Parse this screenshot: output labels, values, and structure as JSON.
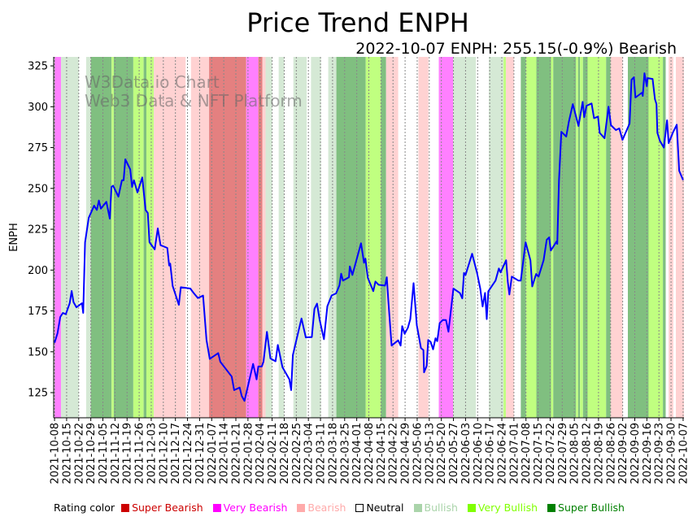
{
  "chart_data": {
    "type": "line",
    "title": "Price Trend ENPH",
    "subtitle": "2022-10-07 ENPH: 255.15(-0.9%) Bearish",
    "ylabel": "ENPH",
    "xlabel": "",
    "watermark": [
      "W3Data.io Chart",
      "Web3 Data & NFT Platform"
    ],
    "start_date": "2021-10-08",
    "xlim_days": [
      -0.5,
      364.5
    ],
    "ylim": [
      109.6,
      330.5
    ],
    "yticks": [
      125,
      150,
      175,
      200,
      225,
      250,
      275,
      300,
      325
    ],
    "xtick_labels": [
      "2021-10-08",
      "2021-10-15",
      "2021-10-22",
      "2021-10-29",
      "2021-11-05",
      "2021-11-12",
      "2021-11-19",
      "2021-11-26",
      "2021-12-03",
      "2021-12-10",
      "2021-12-17",
      "2021-12-24",
      "2021-12-31",
      "2022-01-07",
      "2022-01-14",
      "2022-01-21",
      "2022-01-28",
      "2022-02-04",
      "2022-02-11",
      "2022-02-18",
      "2022-02-25",
      "2022-03-04",
      "2022-03-11",
      "2022-03-18",
      "2022-03-25",
      "2022-04-01",
      "2022-04-08",
      "2022-04-15",
      "2022-04-22",
      "2022-04-29",
      "2022-05-06",
      "2022-05-13",
      "2022-05-20",
      "2022-05-27",
      "2022-06-03",
      "2022-06-10",
      "2022-06-17",
      "2022-06-24",
      "2022-07-01",
      "2022-07-08",
      "2022-07-15",
      "2022-07-22",
      "2022-07-29",
      "2022-08-05",
      "2022-08-12",
      "2022-08-19",
      "2022-08-26",
      "2022-09-02",
      "2022-09-09",
      "2022-09-16",
      "2022-09-23",
      "2022-09-30",
      "2022-10-07"
    ],
    "xtick_step_days": 7,
    "grid": "vertical dotted",
    "series": [
      {
        "name": "ENPH",
        "color": "#0000ff",
        "points_day_price": [
          [
            0,
            155.5
          ],
          [
            1.7,
            161.3
          ],
          [
            3.3,
            171.3
          ],
          [
            4.8,
            173.8
          ],
          [
            6.5,
            173
          ],
          [
            8.8,
            179.7
          ],
          [
            9.9,
            187.2
          ],
          [
            11,
            180.4
          ],
          [
            12.7,
            177.2
          ],
          [
            15.9,
            179.7
          ],
          [
            16.6,
            173.8
          ],
          [
            17.7,
            217
          ],
          [
            19.8,
            232
          ],
          [
            22.9,
            239.4
          ],
          [
            24.5,
            236.8
          ],
          [
            25.7,
            242.6
          ],
          [
            26.8,
            237.6
          ],
          [
            30,
            241.8
          ],
          [
            32,
            231.5
          ],
          [
            33,
            250.9
          ],
          [
            33.9,
            251.7
          ],
          [
            37,
            245
          ],
          [
            39,
            255
          ],
          [
            40,
            255
          ],
          [
            41,
            267.8
          ],
          [
            43.8,
            261.7
          ],
          [
            44.9,
            250.9
          ],
          [
            46,
            255
          ],
          [
            48,
            247.5
          ],
          [
            50.8,
            256.7
          ],
          [
            52.7,
            236.8
          ],
          [
            54,
            235
          ],
          [
            55,
            217
          ],
          [
            58,
            212.7
          ],
          [
            59.8,
            225.5
          ],
          [
            61.4,
            215.2
          ],
          [
            65.3,
            213.6
          ],
          [
            66.4,
            202.8
          ],
          [
            67,
            204
          ],
          [
            68.4,
            190.3
          ],
          [
            72,
            178.7
          ],
          [
            73.1,
            189.5
          ],
          [
            78.6,
            188.7
          ],
          [
            80.5,
            186
          ],
          [
            83,
            182.9
          ],
          [
            86,
            184.4
          ],
          [
            88,
            157.2
          ],
          [
            89.9,
            145.6
          ],
          [
            94.8,
            149.2
          ],
          [
            96,
            143.9
          ],
          [
            102.6,
            134.8
          ],
          [
            104,
            126.5
          ],
          [
            107.2,
            128.1
          ],
          [
            108.4,
            123
          ],
          [
            110,
            119.9
          ],
          [
            115,
            142.6
          ],
          [
            117,
            133.1
          ],
          [
            118,
            141
          ],
          [
            120,
            141
          ],
          [
            121,
            144
          ],
          [
            123,
            162.2
          ],
          [
            125,
            145.9
          ],
          [
            128,
            144.2
          ],
          [
            129.3,
            154.2
          ],
          [
            132,
            140.6
          ],
          [
            136,
            133.1
          ],
          [
            137,
            126.5
          ],
          [
            138,
            148
          ],
          [
            143,
            170.4
          ],
          [
            145.5,
            158.8
          ],
          [
            149,
            159
          ],
          [
            150.5,
            176.2
          ],
          [
            152,
            179.5
          ],
          [
            153.5,
            169.6
          ],
          [
            156,
            157.7
          ],
          [
            158,
            177.9
          ],
          [
            160.5,
            184.5
          ],
          [
            163,
            185.7
          ],
          [
            165,
            190.7
          ],
          [
            166,
            197.8
          ],
          [
            167,
            193.6
          ],
          [
            170.5,
            195.6
          ],
          [
            171,
            202.3
          ],
          [
            172.5,
            197
          ],
          [
            177.5,
            216.4
          ],
          [
            179.2,
            204.5
          ],
          [
            180,
            207
          ],
          [
            181.4,
            195.3
          ],
          [
            184.6,
            187.1
          ],
          [
            185.8,
            193
          ],
          [
            187.7,
            191
          ],
          [
            191.4,
            190.5
          ],
          [
            192.4,
            195.6
          ],
          [
            193.3,
            181
          ],
          [
            195.2,
            153.8
          ],
          [
            199,
            157
          ],
          [
            200.4,
            153.8
          ],
          [
            201.3,
            165.7
          ],
          [
            202.7,
            161
          ],
          [
            204.6,
            164.7
          ],
          [
            206,
            170
          ],
          [
            207.9,
            192
          ],
          [
            209.8,
            166.2
          ],
          [
            212.2,
            152.3
          ],
          [
            213.6,
            151
          ],
          [
            214,
            137.4
          ],
          [
            215.5,
            141.3
          ],
          [
            216.4,
            157.2
          ],
          [
            217.8,
            156
          ],
          [
            219.2,
            151.5
          ],
          [
            220.6,
            158.3
          ],
          [
            221.6,
            156.5
          ],
          [
            223,
            167.5
          ],
          [
            224.9,
            169.5
          ],
          [
            226.7,
            169.4
          ],
          [
            228.1,
            162.3
          ],
          [
            231,
            188.7
          ],
          [
            234.7,
            186
          ],
          [
            236.1,
            182.7
          ],
          [
            237.1,
            198.3
          ],
          [
            238,
            197
          ],
          [
            241.8,
            210
          ],
          [
            244.6,
            198.6
          ],
          [
            246.5,
            188.7
          ],
          [
            247.9,
            177.7
          ],
          [
            249.3,
            186
          ],
          [
            250.3,
            170
          ],
          [
            251.2,
            187
          ],
          [
            255.4,
            193.6
          ],
          [
            257.3,
            201
          ],
          [
            258.3,
            198.6
          ],
          [
            261.5,
            206
          ],
          [
            262.5,
            192.7
          ],
          [
            263.4,
            185
          ],
          [
            264.8,
            196
          ],
          [
            268.6,
            193.6
          ],
          [
            270,
            193.6
          ],
          [
            272.8,
            217
          ],
          [
            275.6,
            206
          ],
          [
            276.6,
            190
          ],
          [
            278.9,
            197.6
          ],
          [
            280.3,
            196
          ],
          [
            283.2,
            206
          ],
          [
            285,
            218.5
          ],
          [
            286.4,
            220
          ],
          [
            287.4,
            212
          ],
          [
            290.7,
            217.5
          ],
          [
            291.1,
            216
          ],
          [
            292.1,
            254.8
          ],
          [
            293.5,
            284.7
          ],
          [
            296.3,
            281.7
          ],
          [
            297.8,
            290.7
          ],
          [
            300.1,
            301.6
          ],
          [
            303.4,
            288.2
          ],
          [
            305.8,
            303
          ],
          [
            306.7,
            293.6
          ],
          [
            308.1,
            300.6
          ],
          [
            311,
            302
          ],
          [
            312.4,
            293
          ],
          [
            314.7,
            294
          ],
          [
            315.7,
            284
          ],
          [
            318.5,
            280.7
          ],
          [
            320.8,
            300
          ],
          [
            322.2,
            288.7
          ],
          [
            325.1,
            285.7
          ],
          [
            327,
            286.7
          ],
          [
            328.9,
            279.7
          ],
          [
            333,
            289.7
          ],
          [
            334.1,
            316.5
          ],
          [
            335.5,
            318
          ],
          [
            336.4,
            305.6
          ],
          [
            340.2,
            308.6
          ],
          [
            340.6,
            306.6
          ],
          [
            341.6,
            320.5
          ],
          [
            343,
            312.6
          ],
          [
            343.4,
            317.5
          ],
          [
            346.3,
            317
          ],
          [
            347.7,
            304.6
          ],
          [
            348.6,
            301.6
          ],
          [
            349.1,
            284
          ],
          [
            350.5,
            279.2
          ],
          [
            352.8,
            275
          ],
          [
            354.7,
            291.7
          ],
          [
            355.6,
            277.7
          ],
          [
            358,
            284
          ],
          [
            360.3,
            289
          ],
          [
            361.7,
            260.8
          ],
          [
            364,
            255.15
          ]
        ]
      }
    ],
    "rating_bands_day": [
      [
        0,
        3.8,
        "very_bearish"
      ],
      [
        3.8,
        14,
        "bullish"
      ],
      [
        18.3,
        21,
        "bullish"
      ],
      [
        21,
        33,
        "super_bullish"
      ],
      [
        33,
        34.3,
        "very_bullish"
      ],
      [
        34.3,
        45.6,
        "super_bullish"
      ],
      [
        45.6,
        51.6,
        "very_bullish"
      ],
      [
        51.6,
        53.2,
        "super_bullish"
      ],
      [
        53.2,
        57.5,
        "very_bullish"
      ],
      [
        57.5,
        75.9,
        "bearish"
      ],
      [
        79,
        89.5,
        "bearish"
      ],
      [
        89.5,
        111,
        "super_bearish"
      ],
      [
        111,
        118,
        "very_bearish"
      ],
      [
        118,
        120.4,
        "super_bearish"
      ],
      [
        120.4,
        122.2,
        "bearish"
      ],
      [
        122.2,
        126,
        "bullish"
      ],
      [
        129.8,
        133,
        "bullish"
      ],
      [
        138.3,
        146,
        "bullish"
      ],
      [
        148.5,
        154.3,
        "bullish"
      ],
      [
        158.5,
        163.2,
        "bullish"
      ],
      [
        163.2,
        180.2,
        "super_bullish"
      ],
      [
        180.2,
        189,
        "very_bullish"
      ],
      [
        189,
        192,
        "super_bullish"
      ],
      [
        192,
        199,
        "bearish"
      ],
      [
        210.7,
        216.5,
        "bearish"
      ],
      [
        222.5,
        230.8,
        "very_bearish"
      ],
      [
        230.8,
        244,
        "bullish"
      ],
      [
        251.5,
        260,
        "bullish"
      ],
      [
        260,
        261.4,
        "very_bullish"
      ],
      [
        261.4,
        266,
        "bearish"
      ],
      [
        270,
        273,
        "super_bullish"
      ],
      [
        273,
        279,
        "very_bullish"
      ],
      [
        279,
        287.5,
        "super_bullish"
      ],
      [
        287.5,
        288.8,
        "very_bullish"
      ],
      [
        288.8,
        302,
        "super_bullish"
      ],
      [
        302,
        303.2,
        "very_bullish"
      ],
      [
        303.2,
        304.3,
        "super_bullish"
      ],
      [
        304.3,
        306,
        "very_bullish"
      ],
      [
        306,
        308.7,
        "super_bullish"
      ],
      [
        308.7,
        319.4,
        "very_bullish"
      ],
      [
        319.4,
        322,
        "super_bullish"
      ],
      [
        322,
        329,
        "bearish"
      ],
      [
        332,
        344,
        "super_bullish"
      ],
      [
        344,
        352.3,
        "very_bullish"
      ],
      [
        352.3,
        353.9,
        "super_bullish"
      ],
      [
        355.6,
        358.3,
        "bearish"
      ],
      [
        359.8,
        364.5,
        "bearish"
      ]
    ],
    "band_colors": {
      "super_bearish": "#e48080",
      "very_bearish": "#ff80ff",
      "bearish": "#ffd2d2",
      "bullish": "#d5e9d5",
      "very_bullish": "#c0ff80",
      "super_bullish": "#80bf80"
    },
    "legend": {
      "title": "Rating color",
      "placement": "bottom",
      "items": [
        {
          "label": "Super Bearish",
          "color": "#cc0000",
          "text_color": "#cc0000"
        },
        {
          "label": "Very Bearish",
          "color": "#ff00ff",
          "text_color": "#ff00ff"
        },
        {
          "label": "Bearish",
          "color": "#ffaaaa",
          "text_color": "#ffaaaa"
        },
        {
          "label": "Neutral",
          "color": "#ffffff",
          "text_color": "#000000"
        },
        {
          "label": "Bullish",
          "color": "#aad4aa",
          "text_color": "#aad4aa"
        },
        {
          "label": "Very Bullish",
          "color": "#80ff00",
          "text_color": "#80ff00"
        },
        {
          "label": "Super Bullish",
          "color": "#008000",
          "text_color": "#008000"
        }
      ]
    }
  }
}
